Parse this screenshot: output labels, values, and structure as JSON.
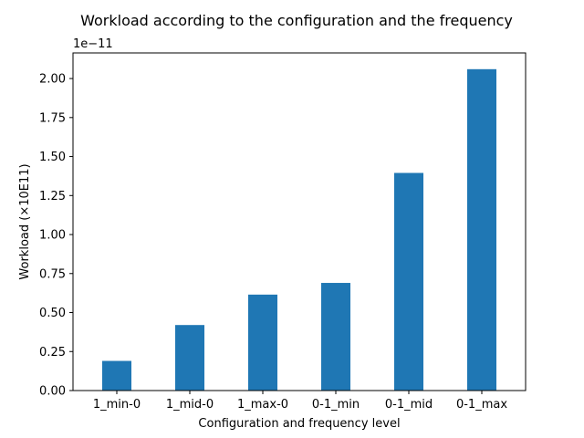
{
  "chart_data": {
    "type": "bar",
    "title": "Workload according to the configuration and the frequency",
    "xlabel": "Configuration and frequency level",
    "ylabel": "Workload (×10E11)",
    "offset_text": "1e−11",
    "categories": [
      "1_min-0",
      "1_mid-0",
      "1_max-0",
      "0-1_min",
      "0-1_mid",
      "0-1_max"
    ],
    "values": [
      0.19,
      0.42,
      0.615,
      0.69,
      1.395,
      2.06
    ],
    "ylim": [
      0,
      2.1642
    ],
    "yticks": [
      0.0,
      0.25,
      0.5,
      0.75,
      1.0,
      1.25,
      1.5,
      1.75,
      2.0
    ],
    "ytick_labels": [
      "0.00",
      "0.25",
      "0.50",
      "0.75",
      "1.00",
      "1.25",
      "1.50",
      "1.75",
      "2.00"
    ],
    "bar_color": "#1f77b4",
    "grid": false
  }
}
